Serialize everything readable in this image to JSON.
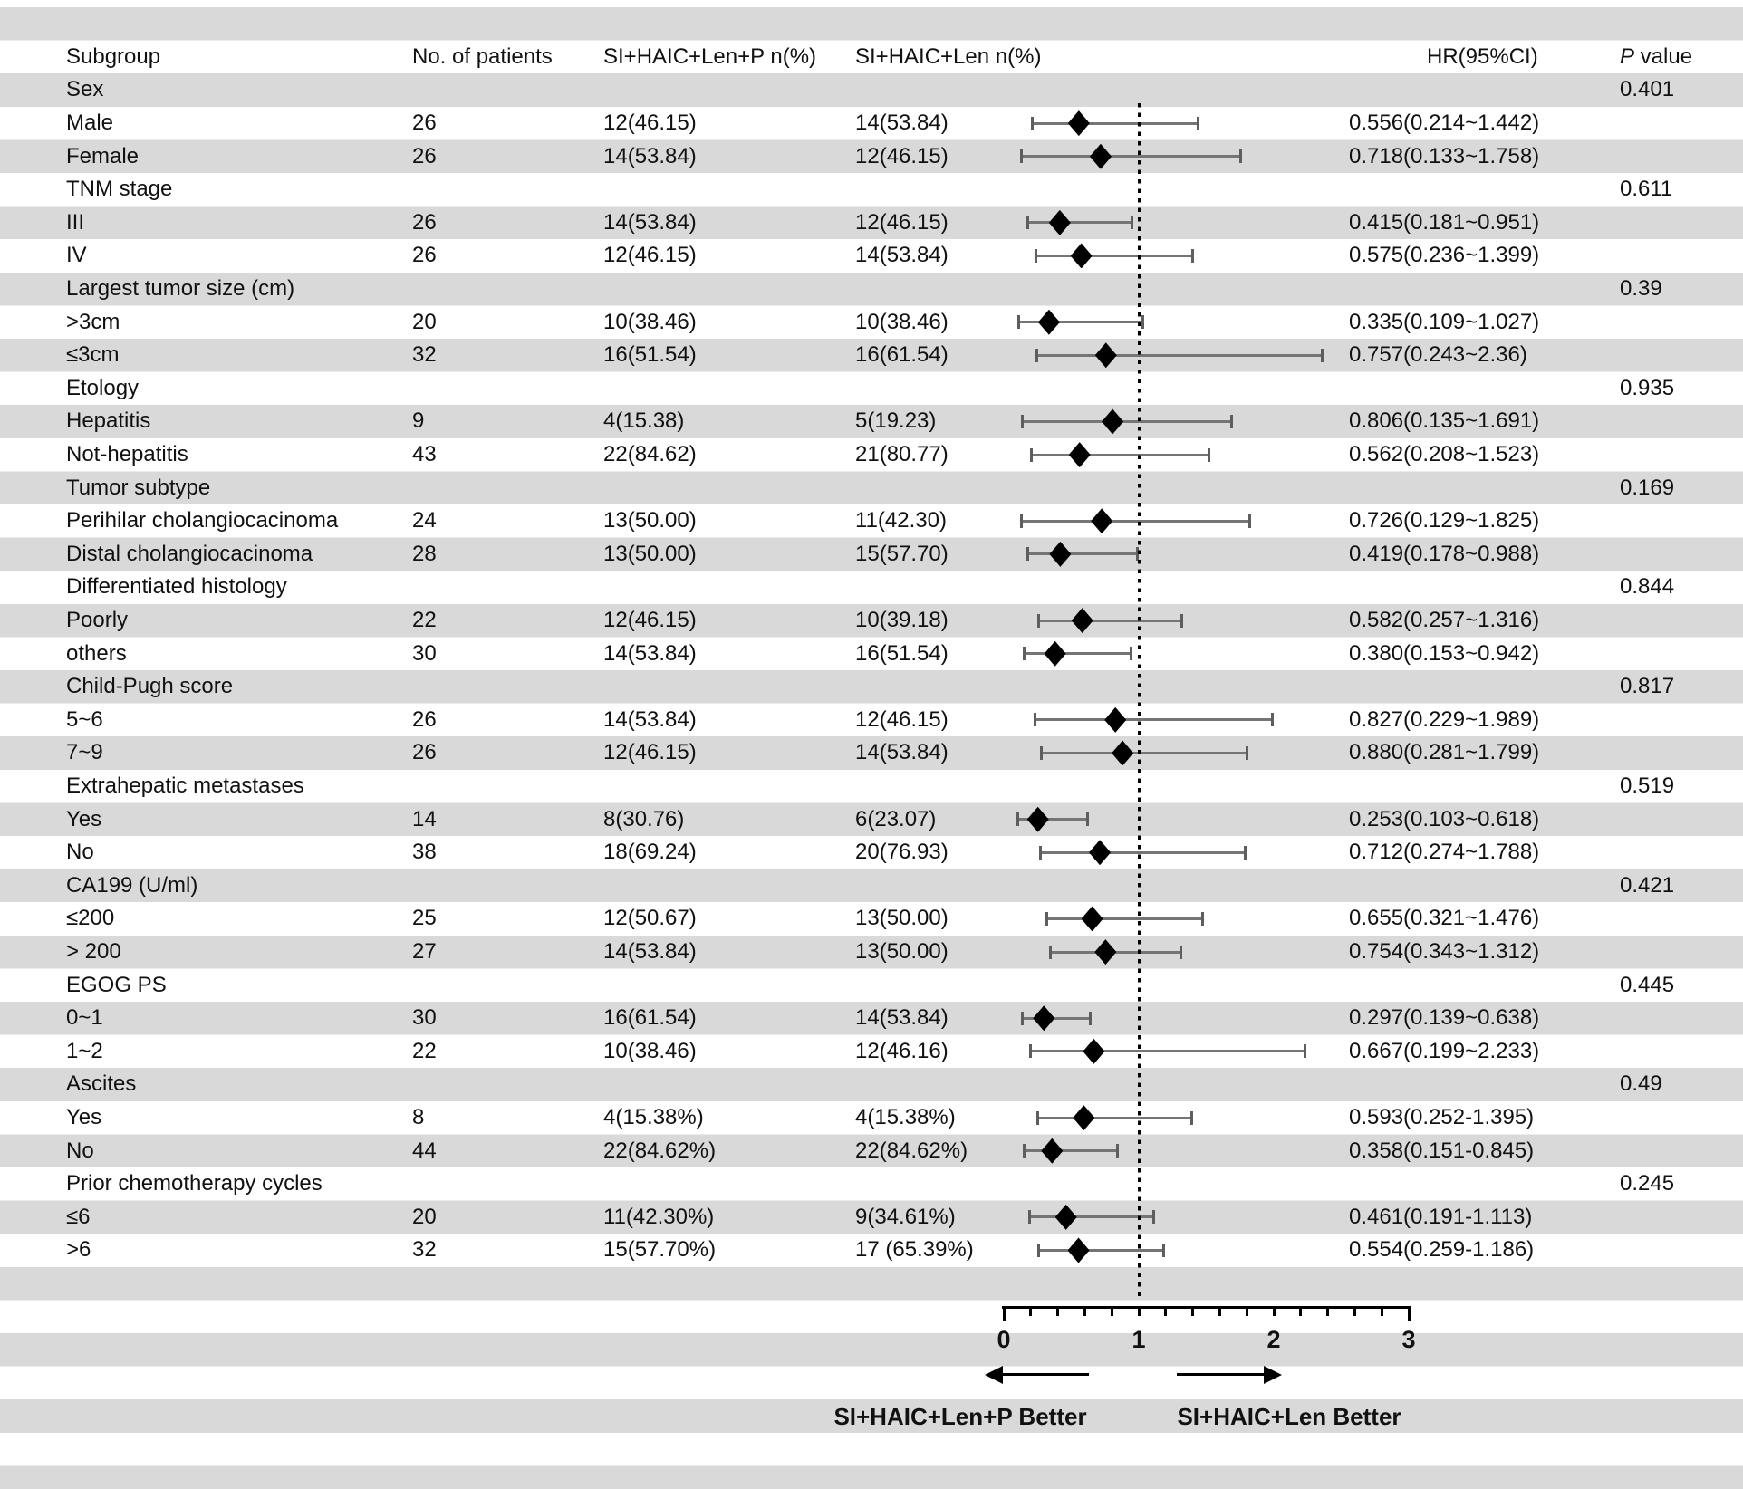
{
  "colors": {
    "stripe": "#d9d9d9",
    "text": "#111111",
    "marker": "#000000",
    "ci_line": "#757575",
    "axis": "#000000"
  },
  "chart_data": {
    "type": "forest",
    "title": "",
    "columns": {
      "subgroup": "Subgroup",
      "patients": "No. of patients",
      "arm1": "SI+HAIC+Len+P n(%)",
      "arm2": "SI+HAIC+Len n(%)",
      "hr": "HR(95%CI)",
      "p_first": "P",
      "p_rest": " value"
    },
    "axis": {
      "min": 0,
      "max": 3,
      "major_ticks": [
        0,
        1,
        2,
        3
      ],
      "minor_step": 0.2,
      "reference_line": 1
    },
    "legend": {
      "left": "SI+HAIC+Len+P Better",
      "right": "SI+HAIC+Len Better"
    },
    "rows": [
      {
        "kind": "group",
        "label": "Sex",
        "p_value": "0.401"
      },
      {
        "kind": "item",
        "label": "Male",
        "patients": "26",
        "arm1": "12(46.15)",
        "arm2": "14(53.84)",
        "hr": 0.556,
        "ci_low": 0.214,
        "ci_high": 1.442,
        "hr_text": "0.556(0.214~1.442)"
      },
      {
        "kind": "item",
        "label": "Female",
        "patients": "26",
        "arm1": "14(53.84)",
        "arm2": "12(46.15)",
        "hr": 0.718,
        "ci_low": 0.133,
        "ci_high": 1.758,
        "hr_text": "0.718(0.133~1.758)"
      },
      {
        "kind": "group",
        "label": "TNM stage",
        "p_value": "0.611"
      },
      {
        "kind": "item",
        "label": "III",
        "patients": "26",
        "arm1": "14(53.84)",
        "arm2": "12(46.15)",
        "hr": 0.415,
        "ci_low": 0.181,
        "ci_high": 0.951,
        "hr_text": "0.415(0.181~0.951)"
      },
      {
        "kind": "item",
        "label": "IV",
        "patients": "26",
        "arm1": "12(46.15)",
        "arm2": "14(53.84)",
        "hr": 0.575,
        "ci_low": 0.236,
        "ci_high": 1.399,
        "hr_text": "0.575(0.236~1.399)"
      },
      {
        "kind": "group",
        "label": "Largest tumor size (cm)",
        "p_value": "0.39"
      },
      {
        "kind": "item",
        "label": ">3cm",
        "patients": "20",
        "arm1": "10(38.46)",
        "arm2": "10(38.46)",
        "hr": 0.335,
        "ci_low": 0.109,
        "ci_high": 1.027,
        "hr_text": "0.335(0.109~1.027)"
      },
      {
        "kind": "item",
        "label": "≤3cm",
        "patients": "32",
        "arm1": "16(51.54)",
        "arm2": "16(61.54)",
        "hr": 0.757,
        "ci_low": 0.243,
        "ci_high": 2.36,
        "hr_text": "0.757(0.243~2.36)"
      },
      {
        "kind": "group",
        "label": "Etology",
        "p_value": "0.935"
      },
      {
        "kind": "item",
        "label": "Hepatitis",
        "patients": "9",
        "arm1": "4(15.38)",
        "arm2": "5(19.23)",
        "hr": 0.806,
        "ci_low": 0.135,
        "ci_high": 1.691,
        "hr_text": "0.806(0.135~1.691)"
      },
      {
        "kind": "item",
        "label": "Not-hepatitis",
        "patients": "43",
        "arm1": "22(84.62)",
        "arm2": "21(80.77)",
        "hr": 0.562,
        "ci_low": 0.208,
        "ci_high": 1.523,
        "hr_text": "0.562(0.208~1.523)"
      },
      {
        "kind": "group",
        "label": "Tumor subtype",
        "p_value": "0.169"
      },
      {
        "kind": "item",
        "label": "Perihilar cholangiocacinoma",
        "patients": "24",
        "arm1": "13(50.00)",
        "arm2": "11(42.30)",
        "hr": 0.726,
        "ci_low": 0.129,
        "ci_high": 1.825,
        "hr_text": "0.726(0.129~1.825)"
      },
      {
        "kind": "item",
        "label": "Distal cholangiocacinoma",
        "patients": "28",
        "arm1": "13(50.00)",
        "arm2": "15(57.70)",
        "hr": 0.419,
        "ci_low": 0.178,
        "ci_high": 0.988,
        "hr_text": "0.419(0.178~0.988)"
      },
      {
        "kind": "group",
        "label": "Differentiated histology",
        "p_value": "0.844"
      },
      {
        "kind": "item",
        "label": "Poorly",
        "patients": "22",
        "arm1": "12(46.15)",
        "arm2": "10(39.18)",
        "hr": 0.582,
        "ci_low": 0.257,
        "ci_high": 1.316,
        "hr_text": "0.582(0.257~1.316)"
      },
      {
        "kind": "item",
        "label": "others",
        "patients": "30",
        "arm1": "14(53.84)",
        "arm2": "16(51.54)",
        "hr": 0.38,
        "ci_low": 0.153,
        "ci_high": 0.942,
        "hr_text": "0.380(0.153~0.942)"
      },
      {
        "kind": "group",
        "label": "Child-Pugh score",
        "p_value": "0.817"
      },
      {
        "kind": "item",
        "label": "5~6",
        "patients": "26",
        "arm1": "14(53.84)",
        "arm2": "12(46.15)",
        "hr": 0.827,
        "ci_low": 0.229,
        "ci_high": 1.989,
        "hr_text": "0.827(0.229~1.989)"
      },
      {
        "kind": "item",
        "label": "7~9",
        "patients": "26",
        "arm1": "12(46.15)",
        "arm2": "14(53.84)",
        "hr": 0.88,
        "ci_low": 0.281,
        "ci_high": 1.799,
        "hr_text": "0.880(0.281~1.799)"
      },
      {
        "kind": "group",
        "label": "Extrahepatic metastases",
        "p_value": "0.519"
      },
      {
        "kind": "item",
        "label": "Yes",
        "patients": "14",
        "arm1": "8(30.76)",
        "arm2": "6(23.07)",
        "hr": 0.253,
        "ci_low": 0.103,
        "ci_high": 0.618,
        "hr_text": "0.253(0.103~0.618)"
      },
      {
        "kind": "item",
        "label": "No",
        "patients": "38",
        "arm1": "18(69.24)",
        "arm2": "20(76.93)",
        "hr": 0.712,
        "ci_low": 0.274,
        "ci_high": 1.788,
        "hr_text": "0.712(0.274~1.788)"
      },
      {
        "kind": "group",
        "label": "CA199 (U/ml)",
        "p_value": "0.421"
      },
      {
        "kind": "item",
        "label": "≤200",
        "patients": "25",
        "arm1": "12(50.67)",
        "arm2": "13(50.00)",
        "hr": 0.655,
        "ci_low": 0.321,
        "ci_high": 1.476,
        "hr_text": "0.655(0.321~1.476)"
      },
      {
        "kind": "item",
        "label": "> 200",
        "patients": "27",
        "arm1": "14(53.84)",
        "arm2": "13(50.00)",
        "hr": 0.754,
        "ci_low": 0.343,
        "ci_high": 1.312,
        "hr_text": "0.754(0.343~1.312)"
      },
      {
        "kind": "group",
        "label": "EGOG PS",
        "p_value": "0.445"
      },
      {
        "kind": "item",
        "label": "0~1",
        "patients": "30",
        "arm1": "16(61.54)",
        "arm2": "14(53.84)",
        "hr": 0.297,
        "ci_low": 0.139,
        "ci_high": 0.638,
        "hr_text": "0.297(0.139~0.638)"
      },
      {
        "kind": "item",
        "label": "1~2",
        "patients": "22",
        "arm1": "10(38.46)",
        "arm2": "12(46.16)",
        "hr": 0.667,
        "ci_low": 0.199,
        "ci_high": 2.233,
        "hr_text": "0.667(0.199~2.233)"
      },
      {
        "kind": "group",
        "label": "Ascites",
        "p_value": "0.49"
      },
      {
        "kind": "item",
        "label": "Yes",
        "patients": "8",
        "arm1": "4(15.38%)",
        "arm2": "4(15.38%)",
        "hr": 0.593,
        "ci_low": 0.252,
        "ci_high": 1.395,
        "hr_text": "0.593(0.252-1.395)"
      },
      {
        "kind": "item",
        "label": "No",
        "patients": "44",
        "arm1": "22(84.62%)",
        "arm2": "22(84.62%)",
        "hr": 0.358,
        "ci_low": 0.151,
        "ci_high": 0.845,
        "hr_text": "0.358(0.151-0.845)"
      },
      {
        "kind": "group",
        "label": "Prior chemotherapy cycles",
        "p_value": "0.245"
      },
      {
        "kind": "item",
        "label": "≤6",
        "patients": "20",
        "arm1": "11(42.30%)",
        "arm2": "9(34.61%)",
        "hr": 0.461,
        "ci_low": 0.191,
        "ci_high": 1.113,
        "hr_text": "0.461(0.191-1.113)"
      },
      {
        "kind": "item",
        "label": ">6",
        "patients": "32",
        "arm1": "15(57.70%)",
        "arm2": "17 (65.39%)",
        "hr": 0.554,
        "ci_low": 0.259,
        "ci_high": 1.186,
        "hr_text": "0.554(0.259-1.186)"
      }
    ]
  }
}
